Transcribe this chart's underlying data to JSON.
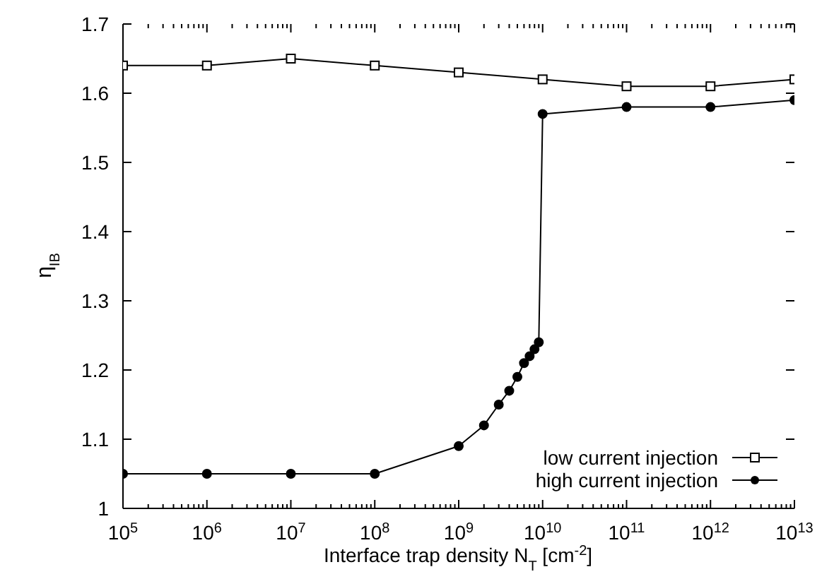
{
  "chart_data": {
    "type": "line",
    "xlabel": "Interface trap density N$_{T}$ [cm$^{-2}$]",
    "ylabel": "η$_{IB}$",
    "log": "x",
    "xlim": [
      100000,
      10000000000000
    ],
    "xticks": [
      {
        "value": 100000,
        "label": "10$^{5}$"
      },
      {
        "value": 200000,
        "label": null
      },
      {
        "value": 300000,
        "label": null
      },
      {
        "value": 400000,
        "label": null
      },
      {
        "value": 500000,
        "label": null
      },
      {
        "value": 600000,
        "label": null
      },
      {
        "value": 700000,
        "label": null
      },
      {
        "value": 800000,
        "label": null
      },
      {
        "value": 900000,
        "label": null
      },
      {
        "value": 1000000,
        "label": "10$^{6}$"
      },
      {
        "value": 2000000,
        "label": null
      },
      {
        "value": 3000000,
        "label": null
      },
      {
        "value": 4000000,
        "label": null
      },
      {
        "value": 5000000,
        "label": null
      },
      {
        "value": 6000000,
        "label": null
      },
      {
        "value": 7000000,
        "label": null
      },
      {
        "value": 8000000,
        "label": null
      },
      {
        "value": 9000000,
        "label": null
      },
      {
        "value": 10000000,
        "label": "10$^{7}$"
      },
      {
        "value": 20000000,
        "label": null
      },
      {
        "value": 30000000,
        "label": null
      },
      {
        "value": 40000000,
        "label": null
      },
      {
        "value": 50000000,
        "label": null
      },
      {
        "value": 60000000,
        "label": null
      },
      {
        "value": 70000000,
        "label": null
      },
      {
        "value": 80000000,
        "label": null
      },
      {
        "value": 90000000,
        "label": null
      },
      {
        "value": 100000000,
        "label": "10$^{8}$"
      },
      {
        "value": 200000000,
        "label": null
      },
      {
        "value": 300000000,
        "label": null
      },
      {
        "value": 400000000,
        "label": null
      },
      {
        "value": 500000000,
        "label": null
      },
      {
        "value": 600000000,
        "label": null
      },
      {
        "value": 700000000,
        "label": null
      },
      {
        "value": 800000000,
        "label": null
      },
      {
        "value": 900000000,
        "label": null
      },
      {
        "value": 1000000000,
        "label": "10$^{9}$"
      },
      {
        "value": 2000000000,
        "label": null
      },
      {
        "value": 3000000000,
        "label": null
      },
      {
        "value": 4000000000,
        "label": null
      },
      {
        "value": 5000000000,
        "label": null
      },
      {
        "value": 6000000000,
        "label": null
      },
      {
        "value": 7000000000,
        "label": null
      },
      {
        "value": 8000000000,
        "label": null
      },
      {
        "value": 9000000000,
        "label": null
      },
      {
        "value": 10000000000,
        "label": "10$^{10}$"
      },
      {
        "value": 20000000000,
        "label": null
      },
      {
        "value": 30000000000,
        "label": null
      },
      {
        "value": 40000000000,
        "label": null
      },
      {
        "value": 50000000000,
        "label": null
      },
      {
        "value": 60000000000,
        "label": null
      },
      {
        "value": 70000000000,
        "label": null
      },
      {
        "value": 80000000000,
        "label": null
      },
      {
        "value": 90000000000,
        "label": null
      },
      {
        "value": 100000000000,
        "label": "10$^{11}$"
      },
      {
        "value": 200000000000,
        "label": null
      },
      {
        "value": 300000000000,
        "label": null
      },
      {
        "value": 400000000000,
        "label": null
      },
      {
        "value": 500000000000,
        "label": null
      },
      {
        "value": 600000000000,
        "label": null
      },
      {
        "value": 700000000000,
        "label": null
      },
      {
        "value": 800000000000,
        "label": null
      },
      {
        "value": 900000000000,
        "label": null
      },
      {
        "value": 1000000000000,
        "label": "10$^{12}$"
      },
      {
        "value": 2000000000000,
        "label": null
      },
      {
        "value": 3000000000000,
        "label": null
      },
      {
        "value": 4000000000000,
        "label": null
      },
      {
        "value": 5000000000000,
        "label": null
      },
      {
        "value": 6000000000000,
        "label": null
      },
      {
        "value": 7000000000000,
        "label": null
      },
      {
        "value": 8000000000000,
        "label": null
      },
      {
        "value": 9000000000000,
        "label": null
      },
      {
        "value": 10000000000000,
        "label": "10$^{13}$"
      }
    ],
    "ylim": [
      1,
      1.7
    ],
    "yticks": [
      1,
      1.1,
      1.2,
      1.3,
      1.4,
      1.5,
      1.6,
      1.7
    ],
    "legend": "bottom right",
    "line_style": "solid",
    "series": [
      {
        "name": "low current injection",
        "color": "#000000",
        "marker": "square",
        "x": [
          100000,
          1000000,
          10000000,
          100000000,
          1000000000,
          10000000000,
          100000000000,
          1000000000000,
          10000000000000
        ],
        "values": [
          1.64,
          1.64,
          1.65,
          1.64,
          1.63,
          1.62,
          1.61,
          1.61,
          1.62
        ]
      },
      {
        "name": "high current injection",
        "color": "#000000",
        "marker": "circle",
        "x": [
          100000,
          1000000,
          10000000,
          100000000,
          1000000000,
          2000000000,
          3000000000,
          4000000000,
          5000000000,
          6000000000,
          7000000000,
          8000000000,
          9000000000,
          10000000000,
          100000000000,
          1000000000000,
          10000000000000
        ],
        "values": [
          1.05,
          1.05,
          1.05,
          1.05,
          1.09,
          1.12,
          1.15,
          1.17,
          1.19,
          1.21,
          1.22,
          1.23,
          1.24,
          1.57,
          1.58,
          1.58,
          1.59
        ]
      }
    ]
  }
}
